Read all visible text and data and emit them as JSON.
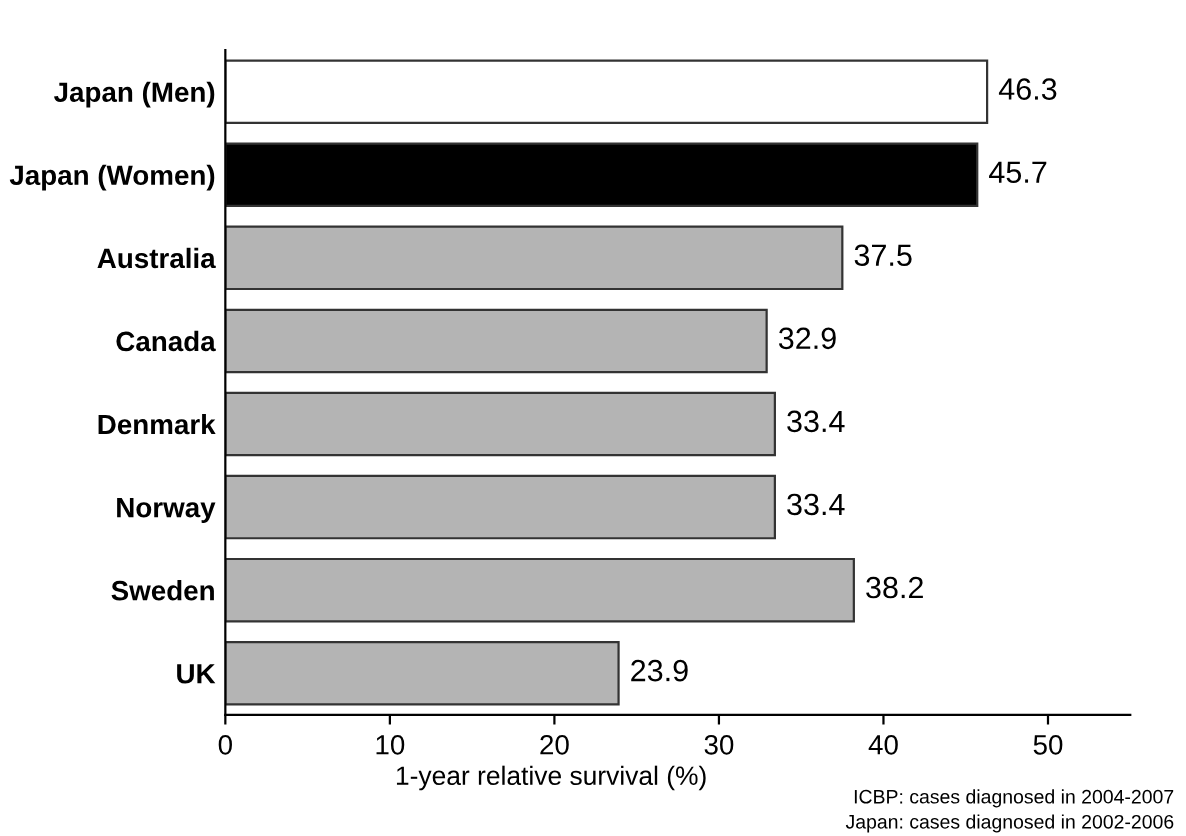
{
  "chart_data": {
    "type": "bar",
    "orientation": "horizontal",
    "categories": [
      "Japan (Men)",
      "Japan (Women)",
      "Australia",
      "Canada",
      "Denmark",
      "Norway",
      "Sweden",
      "UK"
    ],
    "values": [
      46.3,
      45.7,
      37.5,
      32.9,
      33.4,
      33.4,
      38.2,
      23.9
    ],
    "colors": [
      "#ffffff",
      "#000000",
      "#b4b4b4",
      "#b4b4b4",
      "#b4b4b4",
      "#b4b4b4",
      "#b4b4b4",
      "#b4b4b4"
    ],
    "xlabel": "1-year relative survival (%)",
    "xlim": [
      0,
      55
    ],
    "xticks": [
      0,
      10,
      20,
      30,
      40,
      50
    ],
    "data_labels": true,
    "grid": false,
    "annotations": [
      "ICBP: cases diagnosed in 2004-2007",
      "Japan: cases diagnosed in 2002-2006"
    ]
  }
}
